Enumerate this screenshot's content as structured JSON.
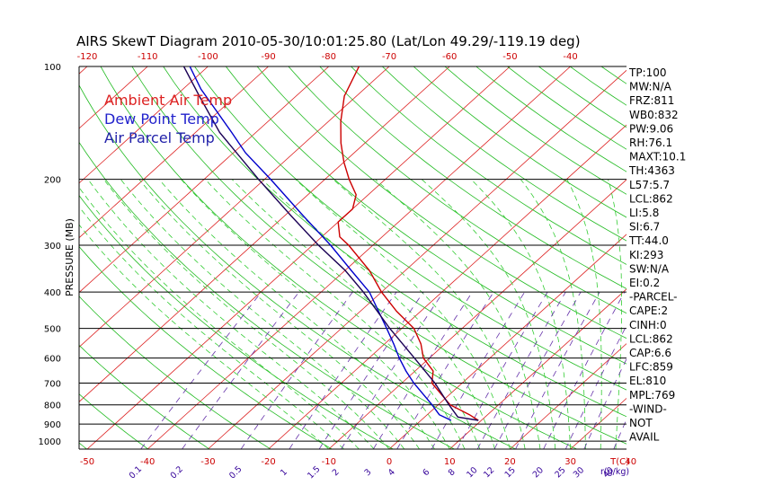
{
  "title": "AIRS SkewT Diagram 2010-05-30/10:01:25.80 (Lat/Lon 49.29/-119.19 deg)",
  "ylabel": "PRESSURE (MB)",
  "x_unit_label": "T(C)",
  "mixing_unit_label": "r(g/kg)",
  "colors": {
    "temperature": "#cc0000",
    "dewpoint": "#0000cc",
    "parcel": "#1a0055",
    "isotherm": "#dd2222",
    "dry_adiabat": "#22bb22",
    "moist_adiabat": "#33cc33",
    "mixing_ratio": "#6633aa",
    "isobar": "#000000",
    "legend_ambient": "#dd2222",
    "legend_dew": "#2222cc",
    "legend_parcel": "#2222aa"
  },
  "legend": [
    {
      "label": "Ambient Air Temp",
      "color_key": "legend_ambient"
    },
    {
      "label": "Dew Point Temp",
      "color_key": "legend_dew"
    },
    {
      "label": "Air Parcel Temp",
      "color_key": "legend_parcel"
    }
  ],
  "stats": [
    "TP:100",
    "MW:N/A",
    "FRZ:811",
    "WB0:832",
    "PW:9.06",
    "RH:76.1",
    "MAXT:10.1",
    "TH:4363",
    "L57:5.7",
    "LCL:862",
    "LI:5.8",
    "SI:6.7",
    "TT:44.0",
    "KI:293",
    "SW:N/A",
    "EI:0.2",
    "-PARCEL-",
    "CAPE:2",
    "CINH:0",
    "LCL:862",
    "CAP:6.6",
    "LFC:859",
    "EL:810",
    "MPL:769",
    "-WIND-",
    "NOT",
    "AVAIL"
  ],
  "chart_data": {
    "type": "line",
    "title": "AIRS SkewT Diagram 2010-05-30/10:01:25.80 (Lat/Lon 49.29/-119.19 deg)",
    "ylabel": "PRESSURE (MB)",
    "xlabel": "T(C)",
    "y_scale": "log",
    "ylim": [
      1000,
      100
    ],
    "pressure_ticks": [
      100,
      200,
      300,
      400,
      500,
      600,
      700,
      800,
      900,
      1000
    ],
    "bottom_temp_ticks": [
      -50,
      -40,
      -30,
      -20,
      -10,
      0,
      10,
      20,
      30,
      40
    ],
    "top_temp_ticks": [
      -120,
      -110,
      -100,
      -90,
      -80,
      -70,
      -60,
      -50,
      -40
    ],
    "mixing_ratio_labels": [
      "0.1",
      "0.2",
      "0.5",
      "1",
      "1.5",
      "2",
      "3",
      "4",
      "6",
      "8",
      "10",
      "12",
      "15",
      "20",
      "25",
      "30",
      "40"
    ],
    "mixing_ratio_values": [
      0.1,
      0.2,
      0.5,
      1,
      1.5,
      2,
      3,
      4,
      6,
      8,
      10,
      12,
      15,
      20,
      25,
      30,
      40
    ],
    "series": [
      {
        "name": "Ambient Air Temp",
        "pressure": [
          880,
          850,
          800,
          700,
          650,
          600,
          550,
          500,
          450,
          400,
          350,
          300,
          285,
          260,
          240,
          220,
          200,
          180,
          160,
          140,
          120,
          100
        ],
        "temperature": [
          9.5,
          7,
          2,
          -5,
          -7,
          -11,
          -14,
          -18,
          -24,
          -30,
          -36,
          -44,
          -47,
          -50,
          -50,
          -52,
          -56,
          -60,
          -64,
          -68,
          -72,
          -75
        ]
      },
      {
        "name": "Dew Point Temp",
        "pressure": [
          880,
          850,
          800,
          700,
          650,
          600,
          550,
          500,
          450,
          400,
          350,
          300,
          250,
          200,
          170,
          150,
          130,
          115,
          100
        ],
        "temperature": [
          5,
          2,
          -1,
          -8,
          -11.5,
          -15,
          -18.5,
          -22.5,
          -27,
          -32,
          -39,
          -47,
          -57,
          -69,
          -78,
          -84,
          -91,
          -97,
          -103
        ]
      },
      {
        "name": "Air Parcel Temp",
        "pressure": [
          880,
          862,
          850,
          800,
          700,
          600,
          500,
          400,
          350,
          300,
          250,
          200,
          150,
          120,
          100
        ],
        "temperature": [
          9.5,
          5.5,
          4.8,
          1.8,
          -4.5,
          -12.5,
          -22,
          -33,
          -40,
          -49,
          -59,
          -71,
          -86,
          -96,
          -104
        ]
      }
    ]
  }
}
